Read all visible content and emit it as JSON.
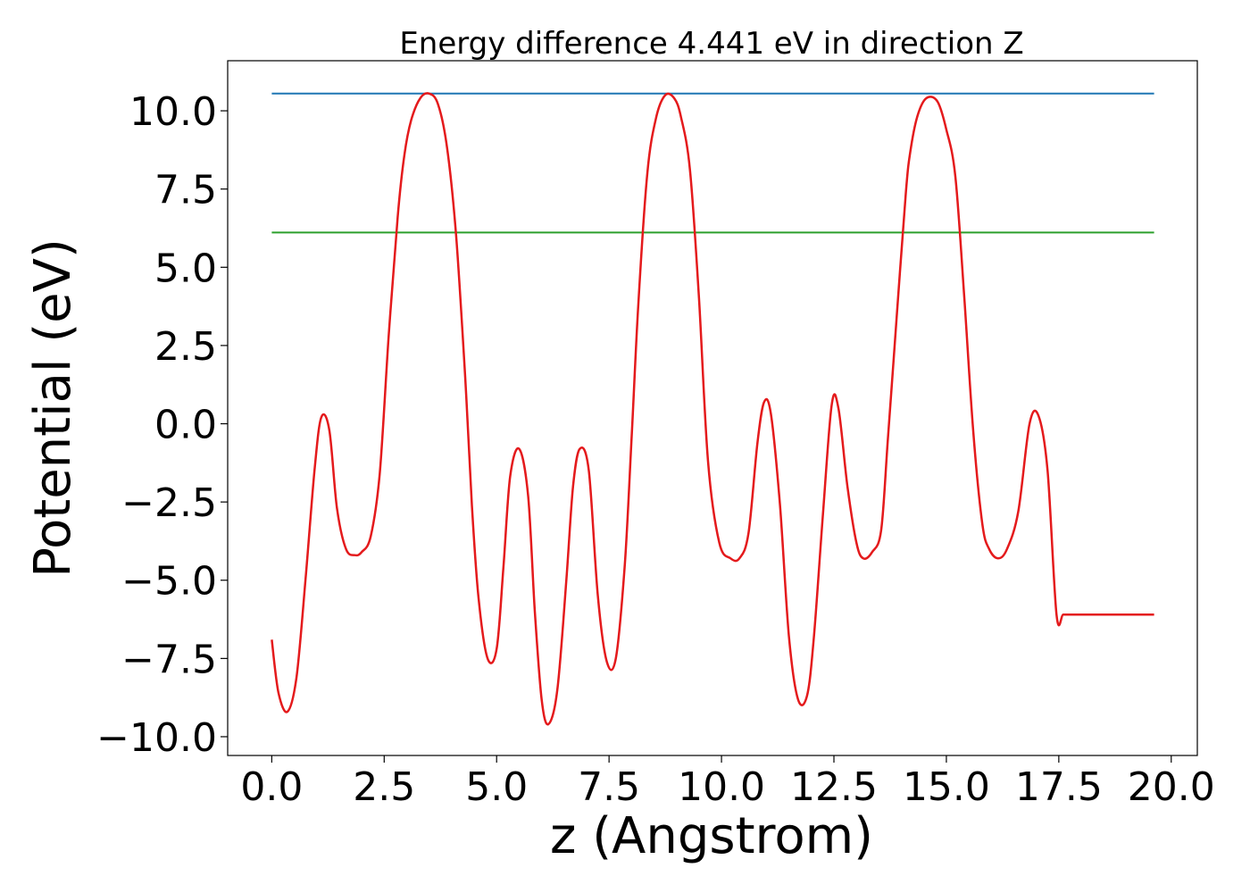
{
  "chart_data": {
    "type": "line",
    "title": "Energy difference 4.441 eV in direction Z",
    "xlabel": "z (Angstrom)",
    "ylabel": "Potential (eV)",
    "xlim": [
      -0.98,
      20.58
    ],
    "ylim": [
      -10.6,
      11.6
    ],
    "xticks": [
      0,
      2.5,
      5,
      7.5,
      10,
      12.5,
      15,
      17.5,
      20
    ],
    "xtick_labels": [
      "0.0",
      "2.5",
      "5.0",
      "7.5",
      "10.0",
      "12.5",
      "15.0",
      "17.5",
      "20.0"
    ],
    "yticks": [
      -10,
      -7.5,
      -5,
      -2.5,
      0,
      2.5,
      5,
      7.5,
      10
    ],
    "ytick_labels": [
      "−10.0",
      "−7.5",
      "−5.0",
      "−2.5",
      "0.0",
      "2.5",
      "5.0",
      "7.5",
      "10.0"
    ],
    "grid": false,
    "series": [
      {
        "color": "#1f77b4",
        "x": [
          0,
          19.62
        ],
        "y": [
          10.55,
          10.55
        ]
      },
      {
        "color": "#2ca02c",
        "x": [
          0,
          19.62
        ],
        "y": [
          6.11,
          6.11
        ]
      },
      {
        "color": "#e41a1c",
        "x": [
          0.0,
          0.15,
          0.35,
          0.55,
          0.75,
          0.95,
          1.1,
          1.28,
          1.45,
          1.65,
          1.85,
          2.0,
          2.2,
          2.4,
          2.6,
          2.8,
          2.95,
          3.1,
          3.3,
          3.5,
          3.7,
          3.9,
          4.1,
          4.3,
          4.45,
          4.6,
          4.8,
          5.0,
          5.15,
          5.3,
          5.5,
          5.7,
          5.85,
          6.0,
          6.15,
          6.35,
          6.55,
          6.7,
          6.85,
          7.05,
          7.25,
          7.45,
          7.65,
          7.85,
          8.0,
          8.15,
          8.35,
          8.55,
          8.75,
          8.95,
          9.1,
          9.3,
          9.5,
          9.7,
          9.95,
          10.2,
          10.4,
          10.6,
          10.8,
          10.95,
          11.1,
          11.3,
          11.5,
          11.7,
          11.9,
          12.05,
          12.25,
          12.45,
          12.6,
          12.8,
          13.0,
          13.15,
          13.35,
          13.55,
          13.7,
          13.9,
          14.1,
          14.2,
          14.35,
          14.55,
          14.8,
          15.0,
          15.2,
          15.4,
          15.6,
          15.8,
          15.95,
          16.15,
          16.35,
          16.6,
          16.85,
          17.05,
          17.25,
          17.45,
          17.6,
          17.8,
          18.0,
          18.2,
          18.45,
          18.65,
          18.85,
          19.0,
          19.1,
          19.25,
          19.4,
          19.62
        ],
        "y": [
          -6.9,
          -8.6,
          -9.2,
          -8.1,
          -5.0,
          -1.5,
          0.2,
          -0.2,
          -2.7,
          -4.0,
          -4.2,
          -4.1,
          -3.6,
          -1.6,
          2.8,
          6.6,
          8.6,
          9.7,
          10.4,
          10.55,
          10.2,
          8.8,
          6.0,
          1.5,
          -2.6,
          -5.6,
          -7.5,
          -7.2,
          -4.6,
          -1.7,
          -0.8,
          -2.3,
          -6.0,
          -8.8,
          -9.6,
          -8.5,
          -5.0,
          -2.0,
          -0.8,
          -1.5,
          -5.5,
          -7.6,
          -7.5,
          -4.5,
          -0.5,
          3.8,
          8.0,
          9.8,
          10.5,
          10.4,
          9.8,
          8.1,
          4.0,
          -1.2,
          -3.8,
          -4.3,
          -4.3,
          -3.5,
          -0.6,
          0.7,
          0.3,
          -2.6,
          -6.8,
          -8.8,
          -8.7,
          -6.9,
          -3.0,
          0.6,
          0.5,
          -2.0,
          -3.8,
          -4.3,
          -4.1,
          -3.4,
          -0.5,
          3.5,
          7.4,
          8.7,
          9.8,
          10.4,
          10.3,
          9.4,
          7.9,
          4.0,
          -0.3,
          -3.2,
          -4.0,
          -4.3,
          -4.0,
          -2.8,
          0.0,
          0.25,
          -1.5,
          -6.1,
          -6.1,
          -6.1,
          -6.1,
          -6.1,
          -6.1,
          -6.1,
          -6.1,
          -6.1,
          -6.1,
          -6.1,
          -6.1,
          -6.1
        ]
      }
    ]
  }
}
